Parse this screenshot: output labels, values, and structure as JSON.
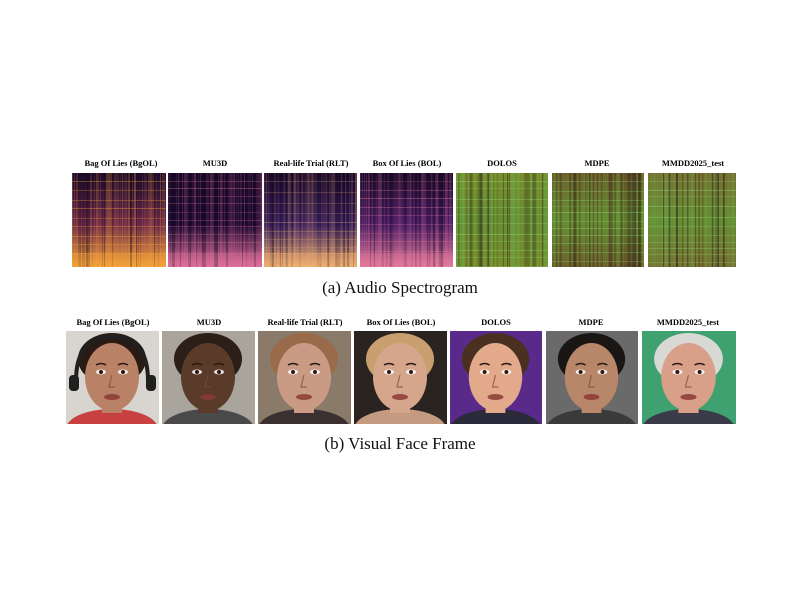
{
  "audio_row": {
    "labels": [
      "Bag Of Lies (BgOL)",
      "MU3D",
      "Real-life Trial (RLT)",
      "Box Of Lies (BOL)",
      "DOLOS",
      "MDPE",
      "MMDD2025_test"
    ],
    "caption": "(a) Audio Spectrogram",
    "tiles": [
      {
        "colormap": "magma-bright",
        "base": "#6e2a4a",
        "hot": "#f5a23a"
      },
      {
        "colormap": "magma-dark",
        "base": "#1c0a33",
        "hot": "#e0709a"
      },
      {
        "colormap": "magma-mid",
        "base": "#3a2060",
        "hot": "#f0b070"
      },
      {
        "colormap": "magma-purple",
        "base": "#4a1d66",
        "hot": "#e47a9a"
      },
      {
        "colormap": "viridis-green",
        "base": "#7a8a2a",
        "hot": "#5ad26a"
      },
      {
        "colormap": "viridis-green",
        "base": "#6e5a28",
        "hot": "#4fc45a"
      },
      {
        "colormap": "viridis-green",
        "base": "#7a6a2e",
        "hot": "#58cc62"
      }
    ]
  },
  "face_row": {
    "labels": [
      "Bag Of Lies (BgOL)",
      "MU3D",
      "Real-life Trial (RLT)",
      "Box Of Lies (BOL)",
      "DOLOS",
      "MDPE",
      "MMDD2025_test"
    ],
    "caption": "(b) Visual Face Frame",
    "faces": [
      {
        "skin": "#b98266",
        "hair": "#2a1a14",
        "bg": "#d8d4d0",
        "shirt": "#c84040",
        "headphones": true
      },
      {
        "skin": "#5a3a28",
        "hair": "#2b1f18",
        "bg": "#a9a49c",
        "shirt": "#4a4a4a",
        "headphones": false
      },
      {
        "skin": "#c99a84",
        "hair": "#9a6a4a",
        "bg": "#8a7a6a",
        "shirt": "#3a3030",
        "headphones": false
      },
      {
        "skin": "#d6a68c",
        "hair": "#c8a070",
        "bg": "#2a2420",
        "shirt": "#c49a80",
        "headphones": false
      },
      {
        "skin": "#e2a98a",
        "hair": "#4a3020",
        "bg": "#5a2a8a",
        "shirt": "#2a2a3a",
        "headphones": false
      },
      {
        "skin": "#b88668",
        "hair": "#1a1614",
        "bg": "#6a6a6a",
        "shirt": "#3a3a3a",
        "headphones": false
      },
      {
        "skin": "#d8a088",
        "hair": "#d8d8d4",
        "bg": "#3fa070",
        "shirt": "#3a3a48",
        "headphones": false
      }
    ]
  }
}
